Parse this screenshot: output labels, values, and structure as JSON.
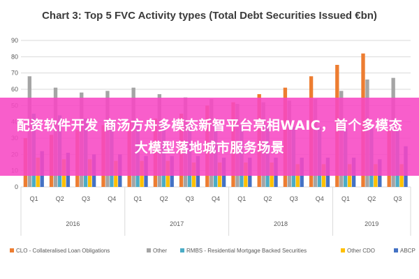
{
  "chart_data": {
    "type": "bar",
    "title": "Chart 3: Top 5 FVC Activity types (Total Debt Securities Issued €bn)",
    "ylim": [
      0,
      90
    ],
    "yticks": [
      0,
      10,
      20,
      30,
      40,
      50,
      60,
      70,
      80,
      90
    ],
    "grid": true,
    "legend_position": "bottom",
    "categories": [
      "Q1",
      "Q2",
      "Q3",
      "Q4",
      "Q1",
      "Q2",
      "Q3",
      "Q4",
      "Q1",
      "Q2",
      "Q3",
      "Q4",
      "Q1",
      "Q2",
      "Q3"
    ],
    "groups": [
      {
        "label": "2016",
        "count": 4
      },
      {
        "label": "2017",
        "count": 4
      },
      {
        "label": "2018",
        "count": 4
      },
      {
        "label": "2019",
        "count": 3
      }
    ],
    "series": [
      {
        "name": "CLO - Collateralised Loan Obligations",
        "color": "#ed7d31",
        "values": [
          30,
          32,
          35,
          38,
          40,
          42,
          45,
          50,
          52,
          57,
          61,
          68,
          75,
          82,
          35
        ]
      },
      {
        "name": "Other",
        "color": "#a5a5a5",
        "values": [
          68,
          61,
          58,
          59,
          61,
          57,
          55,
          54,
          51,
          52,
          53,
          54,
          59,
          66,
          67
        ]
      },
      {
        "name": "RMBS - Residential Mortgage Backed Securities",
        "color": "#4bacc6",
        "values": [
          45,
          44,
          42,
          41,
          40,
          40,
          39,
          38,
          38,
          38,
          37,
          37,
          36,
          36,
          35
        ]
      },
      {
        "name": "Other CDO",
        "color": "#ffc000",
        "values": [
          18,
          17,
          17,
          16,
          16,
          16,
          15,
          15,
          15,
          15,
          14,
          14,
          14,
          14,
          14
        ]
      },
      {
        "name": "ABCP",
        "color": "#4472c4",
        "values": [
          22,
          21,
          20,
          20,
          19,
          19,
          19,
          18,
          18,
          18,
          18,
          18,
          18,
          17,
          25
        ]
      }
    ]
  },
  "overlay": {
    "banner_text": "配资软件开发 商汤方舟多模态新智平台亮相WAIC，首个多模态大模型落地城市服务场景"
  }
}
